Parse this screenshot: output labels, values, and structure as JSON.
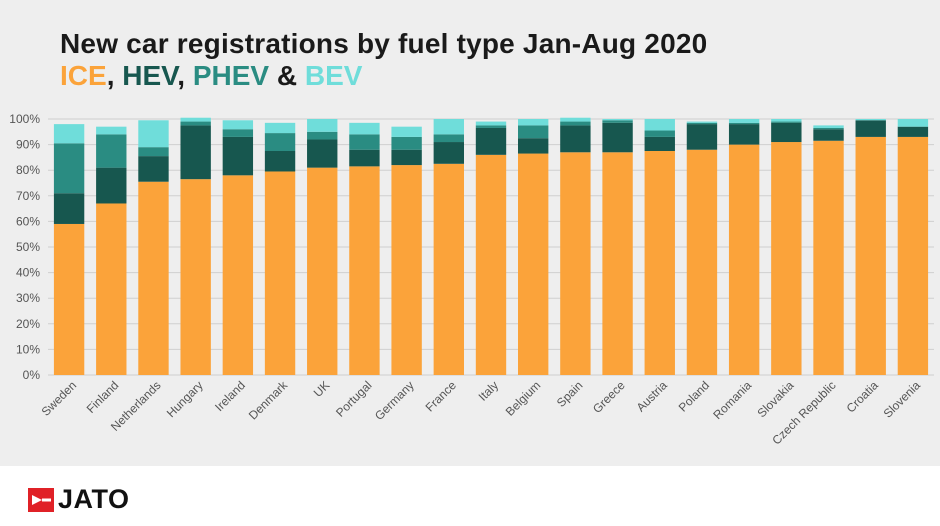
{
  "title": "New car registrations by fuel type Jan-Aug 2020",
  "subtitle": {
    "ice": "ICE",
    "sep1": ", ",
    "hev": "HEV",
    "sep2": ", ",
    "phev": "PHEV",
    "sep3": " & ",
    "bev": "BEV"
  },
  "colors": {
    "ice": "#FBA33A",
    "hev": "#17574F",
    "phev": "#2A8C82",
    "bev": "#6FDDDA",
    "grid": "#cfcfcf",
    "text": "#555555"
  },
  "footer": {
    "logo_text": "JATO",
    "logo_icon": "jato-arrow-icon"
  },
  "chart_data": {
    "type": "bar",
    "stacked": true,
    "title": "New car registrations by fuel type Jan-Aug 2020",
    "xlabel": "",
    "ylabel": "",
    "ylim": [
      0,
      100
    ],
    "yticks": [
      "0%",
      "10%",
      "20%",
      "30%",
      "40%",
      "50%",
      "60%",
      "70%",
      "80%",
      "90%",
      "100%"
    ],
    "categories": [
      "Sweden",
      "Finland",
      "Netherlands",
      "Hungary",
      "Ireland",
      "Denmark",
      "UK",
      "Portugal",
      "Germany",
      "France",
      "Italy",
      "Belgium",
      "Spain",
      "Greece",
      "Austria",
      "Poland",
      "Romania",
      "Slovakia",
      "Czech Republic",
      "Croatia",
      "Slovenia"
    ],
    "series": [
      {
        "name": "ICE",
        "values": [
          59,
          67,
          75.5,
          76.5,
          78,
          79.5,
          81,
          81.5,
          82,
          82.5,
          86,
          86.5,
          87,
          87,
          87.5,
          88,
          90,
          91,
          91.5,
          93,
          93
        ]
      },
      {
        "name": "HEV",
        "values": [
          12,
          14,
          10,
          21,
          15,
          8,
          11,
          6.5,
          6,
          8.5,
          10.5,
          6,
          10.5,
          11.5,
          5.5,
          10,
          8,
          7.5,
          4.5,
          6.5,
          4
        ]
      },
      {
        "name": "PHEV",
        "values": [
          19.5,
          13,
          3.5,
          1.5,
          3,
          7,
          3,
          6,
          5,
          3,
          1,
          5,
          1.5,
          1,
          2.5,
          0.5,
          0.5,
          0.5,
          0.5,
          0,
          0
        ]
      },
      {
        "name": "BEV",
        "values": [
          7.5,
          3,
          10.5,
          1.5,
          3.5,
          4,
          5,
          4.5,
          4,
          6,
          1.5,
          2.5,
          1.5,
          0.5,
          4.5,
          0.5,
          1.5,
          1,
          1,
          0.5,
          3
        ]
      }
    ]
  }
}
